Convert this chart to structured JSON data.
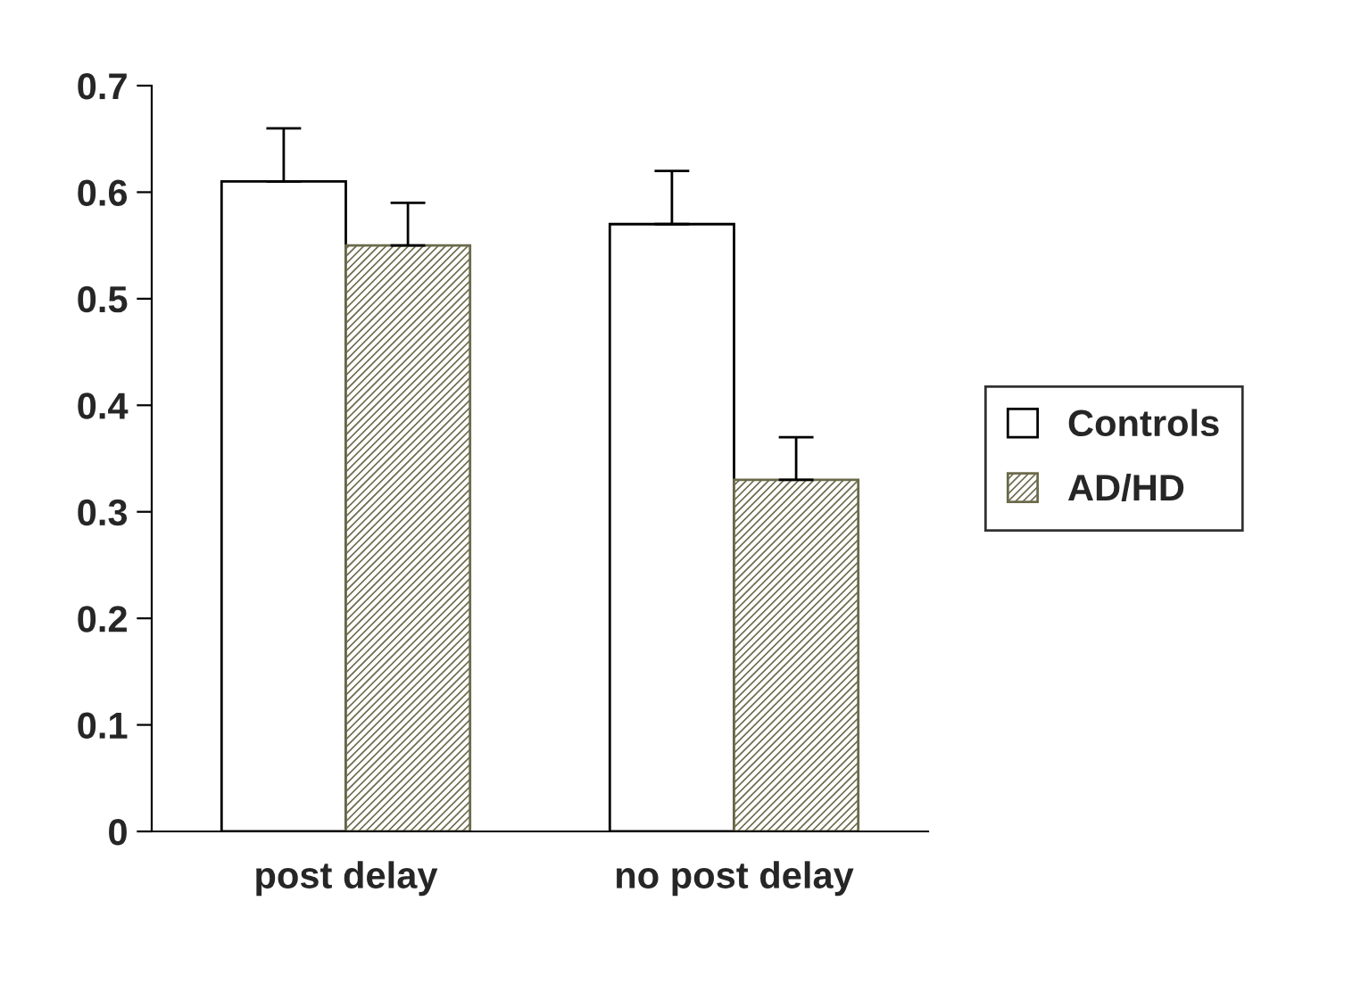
{
  "chart_data": {
    "type": "bar",
    "categories": [
      "post delay",
      "no post delay"
    ],
    "series": [
      {
        "name": "Controls",
        "color": "#ffffff",
        "values": [
          0.61,
          0.57
        ],
        "errors": [
          [
            0.61,
            0.66
          ],
          [
            0.57,
            0.62
          ]
        ]
      },
      {
        "name": "AD/HD",
        "color": "#6b6b4b",
        "values": [
          0.55,
          0.33
        ],
        "errors": [
          [
            0.55,
            0.59
          ],
          [
            0.33,
            0.37
          ]
        ]
      }
    ],
    "ylim": [
      0,
      0.7
    ],
    "yticks": [
      {
        "value": 0,
        "label": "0"
      },
      0.1,
      0.2,
      0.3,
      0.4,
      0.5,
      0.6,
      0.7
    ],
    "grid": false,
    "legend": "right"
  }
}
